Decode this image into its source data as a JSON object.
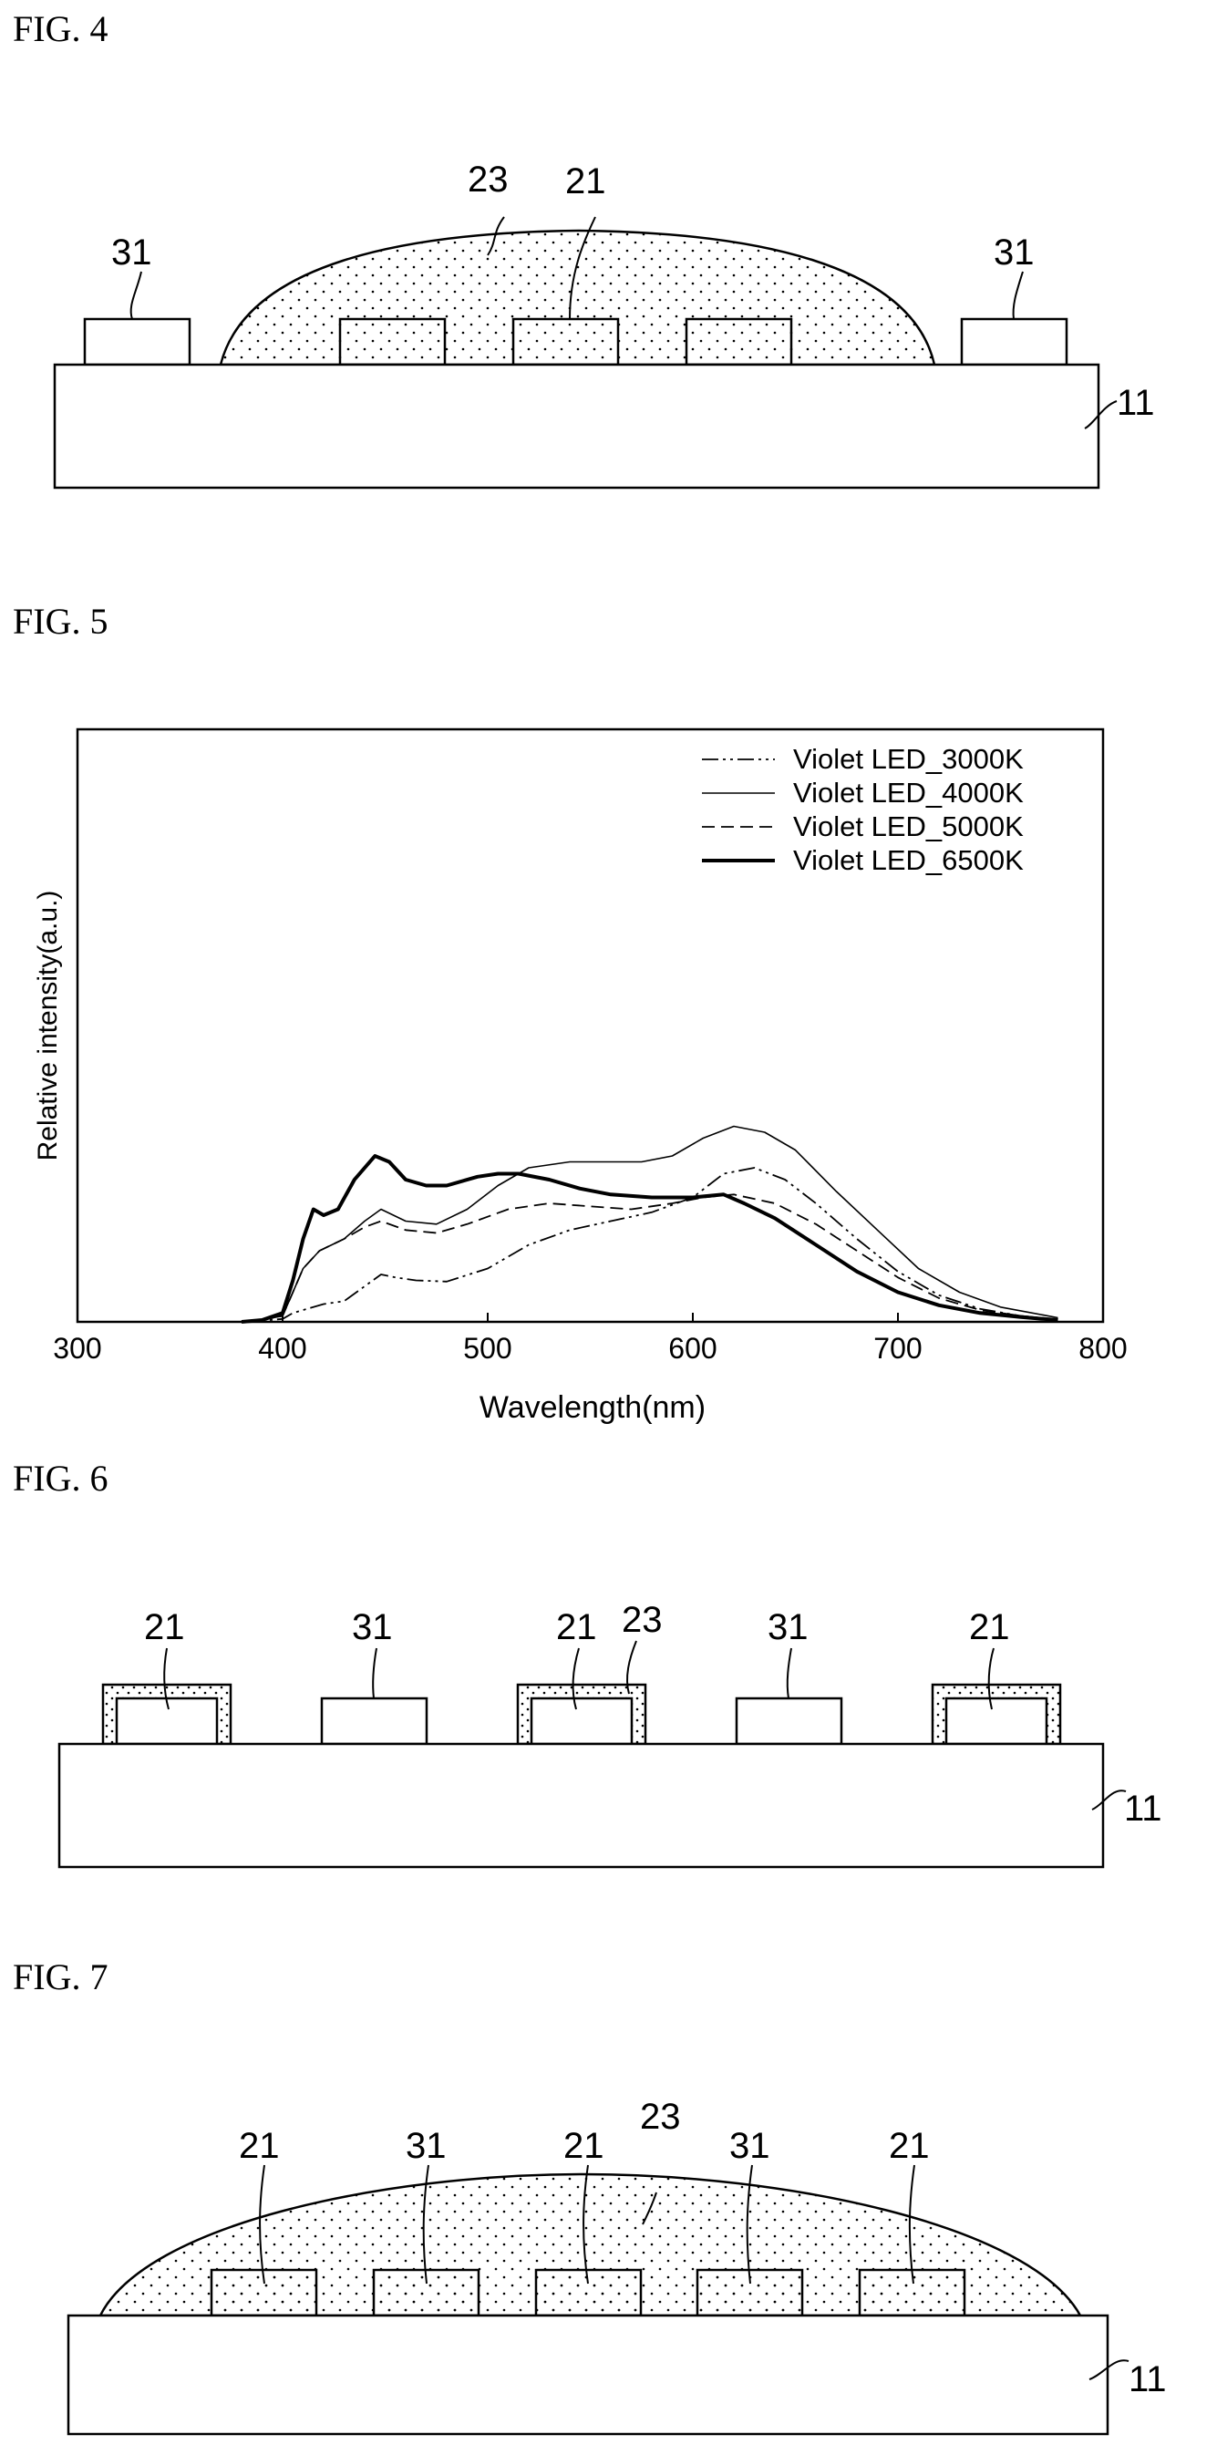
{
  "fig4": {
    "title": "FIG. 4",
    "labels": {
      "encapsulant": "23",
      "chip": "21",
      "chip_left": "31",
      "chip_right": "31",
      "substrate": "11"
    }
  },
  "fig5": {
    "title": "FIG. 5",
    "chart_data": {
      "type": "line",
      "xlabel": "Wavelength(nm)",
      "ylabel": "Relative intensity(a.u.)",
      "xlim": [
        300,
        800
      ],
      "xticks": [
        "300",
        "400",
        "500",
        "600",
        "700",
        "800"
      ],
      "ylim": [
        0,
        1
      ],
      "grid": false,
      "legend_position": "top-right",
      "series": [
        {
          "name": "Violet  LED_3000K",
          "style": "dash-dot-dot",
          "points": [
            [
              380,
              0
            ],
            [
              390,
              0.002
            ],
            [
              400,
              0.005
            ],
            [
              405,
              0.015
            ],
            [
              410,
              0.02
            ],
            [
              420,
              0.03
            ],
            [
              430,
              0.035
            ],
            [
              440,
              0.06
            ],
            [
              448,
              0.08
            ],
            [
              455,
              0.075
            ],
            [
              465,
              0.07
            ],
            [
              480,
              0.068
            ],
            [
              500,
              0.09
            ],
            [
              520,
              0.13
            ],
            [
              540,
              0.155
            ],
            [
              560,
              0.17
            ],
            [
              580,
              0.185
            ],
            [
              600,
              0.21
            ],
            [
              615,
              0.25
            ],
            [
              630,
              0.26
            ],
            [
              645,
              0.24
            ],
            [
              660,
              0.2
            ],
            [
              680,
              0.14
            ],
            [
              700,
              0.085
            ],
            [
              720,
              0.045
            ],
            [
              740,
              0.022
            ],
            [
              760,
              0.01
            ],
            [
              778,
              0.004
            ]
          ]
        },
        {
          "name": "Violet  LED_4000K",
          "style": "thin-solid",
          "points": [
            [
              380,
              0
            ],
            [
              390,
              0.003
            ],
            [
              400,
              0.01
            ],
            [
              405,
              0.05
            ],
            [
              410,
              0.09
            ],
            [
              418,
              0.12
            ],
            [
              430,
              0.14
            ],
            [
              440,
              0.17
            ],
            [
              448,
              0.19
            ],
            [
              460,
              0.17
            ],
            [
              475,
              0.165
            ],
            [
              490,
              0.19
            ],
            [
              505,
              0.23
            ],
            [
              520,
              0.26
            ],
            [
              540,
              0.27
            ],
            [
              560,
              0.27
            ],
            [
              575,
              0.27
            ],
            [
              590,
              0.28
            ],
            [
              605,
              0.31
            ],
            [
              620,
              0.33
            ],
            [
              635,
              0.32
            ],
            [
              650,
              0.29
            ],
            [
              670,
              0.22
            ],
            [
              690,
              0.155
            ],
            [
              710,
              0.09
            ],
            [
              730,
              0.05
            ],
            [
              750,
              0.025
            ],
            [
              778,
              0.007
            ]
          ]
        },
        {
          "name": "Violet  LED_5000K",
          "style": "dashed",
          "points": [
            [
              380,
              0
            ],
            [
              390,
              0.003
            ],
            [
              400,
              0.01
            ],
            [
              405,
              0.05
            ],
            [
              410,
              0.09
            ],
            [
              418,
              0.12
            ],
            [
              430,
              0.14
            ],
            [
              440,
              0.16
            ],
            [
              448,
              0.17
            ],
            [
              460,
              0.155
            ],
            [
              475,
              0.15
            ],
            [
              490,
              0.165
            ],
            [
              510,
              0.19
            ],
            [
              530,
              0.2
            ],
            [
              550,
              0.195
            ],
            [
              570,
              0.19
            ],
            [
              590,
              0.2
            ],
            [
              605,
              0.21
            ],
            [
              620,
              0.215
            ],
            [
              640,
              0.2
            ],
            [
              660,
              0.165
            ],
            [
              680,
              0.12
            ],
            [
              700,
              0.075
            ],
            [
              720,
              0.04
            ],
            [
              740,
              0.02
            ],
            [
              760,
              0.01
            ],
            [
              778,
              0.004
            ]
          ]
        },
        {
          "name": "Violet  LED_6500K",
          "style": "thick-solid",
          "points": [
            [
              380,
              0
            ],
            [
              390,
              0.003
            ],
            [
              400,
              0.015
            ],
            [
              405,
              0.07
            ],
            [
              410,
              0.14
            ],
            [
              415,
              0.19
            ],
            [
              420,
              0.18
            ],
            [
              427,
              0.19
            ],
            [
              435,
              0.24
            ],
            [
              445,
              0.28
            ],
            [
              452,
              0.27
            ],
            [
              460,
              0.24
            ],
            [
              470,
              0.23
            ],
            [
              480,
              0.23
            ],
            [
              495,
              0.245
            ],
            [
              505,
              0.25
            ],
            [
              515,
              0.25
            ],
            [
              530,
              0.24
            ],
            [
              545,
              0.225
            ],
            [
              560,
              0.215
            ],
            [
              580,
              0.21
            ],
            [
              600,
              0.21
            ],
            [
              615,
              0.215
            ],
            [
              625,
              0.2
            ],
            [
              640,
              0.175
            ],
            [
              660,
              0.13
            ],
            [
              680,
              0.085
            ],
            [
              700,
              0.05
            ],
            [
              720,
              0.028
            ],
            [
              740,
              0.015
            ],
            [
              760,
              0.008
            ],
            [
              778,
              0.003
            ]
          ]
        }
      ]
    }
  },
  "fig6": {
    "title": "FIG. 6",
    "labels": {
      "chip1": "21",
      "wl1": "31",
      "chip2": "21",
      "coat": "23",
      "wl2": "31",
      "chip3": "21",
      "substrate": "11"
    }
  },
  "fig7": {
    "title": "FIG. 7",
    "labels": {
      "encapsulant": "23",
      "chip1": "21",
      "wl1": "31",
      "chip2": "21",
      "wl2": "31",
      "chip3": "21",
      "substrate": "11"
    }
  }
}
